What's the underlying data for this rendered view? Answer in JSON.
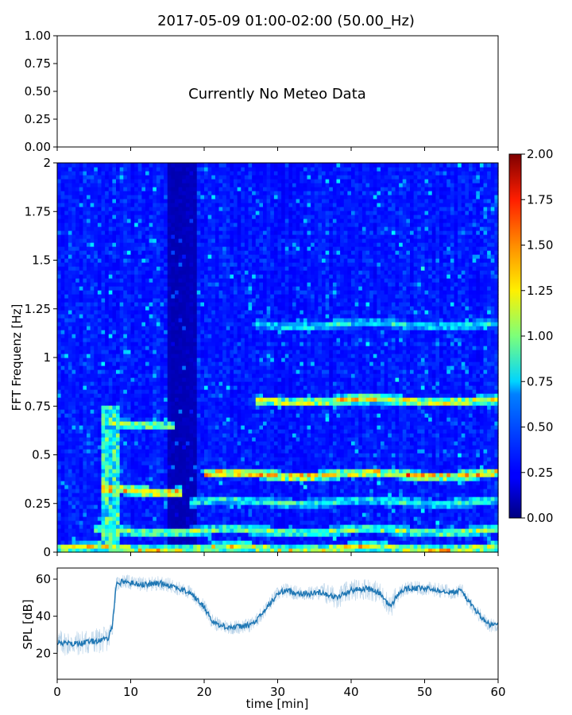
{
  "title": "2017-05-09 01:00-02:00 (50.00_Hz)",
  "chart_data": [
    {
      "type": "line",
      "panel": "meteo",
      "annotation": "Currently No Meteo Data",
      "ylim": [
        0.0,
        1.0
      ],
      "yticks": [
        "0.00",
        "0.25",
        "0.50",
        "0.75",
        "1.00"
      ],
      "xlim": [
        0,
        60
      ],
      "series": []
    },
    {
      "type": "heatmap",
      "panel": "spectrogram",
      "ylabel": "FFT Frequenz [Hz]",
      "xlim": [
        0,
        60
      ],
      "ylim": [
        0,
        2
      ],
      "yticks": [
        "0",
        "0.25",
        "0.5",
        "0.75",
        "1",
        "1.25",
        "1.5",
        "1.75",
        "2"
      ],
      "colormap": "jet",
      "colorbar": {
        "range": [
          0.0,
          2.0
        ],
        "ticks": [
          "0.00",
          "0.25",
          "0.50",
          "0.75",
          "1.00",
          "1.25",
          "1.50",
          "1.75",
          "2.00"
        ]
      },
      "ridges": [
        {
          "freq": 0.4,
          "t_start": 20,
          "t_end": 60,
          "level": 1.8
        },
        {
          "freq": 0.32,
          "t_start": 6,
          "t_end": 17,
          "level": 1.9
        },
        {
          "freq": 0.78,
          "t_start": 27,
          "t_end": 60,
          "level": 1.6
        },
        {
          "freq": 0.26,
          "t_start": 18,
          "t_end": 60,
          "level": 1.1
        },
        {
          "freq": 1.17,
          "t_start": 27,
          "t_end": 60,
          "level": 1.0
        },
        {
          "freq": 0.11,
          "t_start": 5,
          "t_end": 60,
          "level": 1.3
        },
        {
          "freq": 0.02,
          "t_start": 0,
          "t_end": 60,
          "level": 1.6
        },
        {
          "freq": 0.66,
          "t_start": 6,
          "t_end": 16,
          "level": 1.4
        }
      ]
    },
    {
      "type": "line",
      "panel": "spl",
      "ylabel": "SPL [dB]",
      "xlabel": "time [min]",
      "xlim": [
        0,
        60
      ],
      "ylim": [
        6,
        66
      ],
      "xticks": [
        "0",
        "10",
        "20",
        "30",
        "40",
        "50",
        "60"
      ],
      "yticks": [
        "20",
        "40",
        "60"
      ],
      "color": "#1f77b4",
      "series": [
        {
          "x": [
            0,
            2,
            4,
            6,
            7,
            7.5,
            8,
            9,
            10,
            12,
            14,
            16,
            17,
            18,
            19,
            20,
            21,
            22,
            24,
            26,
            27,
            28,
            29,
            30,
            31,
            32,
            34,
            36,
            38,
            40,
            42,
            43,
            44,
            45,
            45.5,
            46,
            47,
            48,
            50,
            52,
            54,
            55,
            56,
            57,
            58,
            59,
            60
          ],
          "values": [
            26,
            25,
            26,
            27,
            28,
            35,
            57,
            59,
            58,
            57,
            58,
            56,
            54,
            53,
            49,
            45,
            38,
            35,
            34,
            35,
            37,
            42,
            47,
            52,
            54,
            53,
            52,
            53,
            50,
            54,
            55,
            54,
            52,
            47,
            45,
            50,
            54,
            55,
            55,
            54,
            53,
            54,
            48,
            43,
            38,
            35,
            36
          ]
        }
      ]
    }
  ]
}
